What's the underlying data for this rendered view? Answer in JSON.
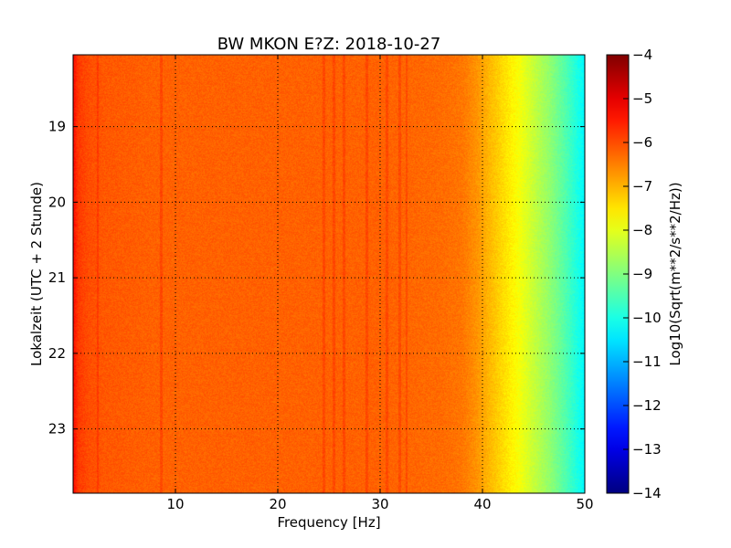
{
  "chart_data": {
    "type": "heatmap",
    "title": "BW MKON E?Z: 2018-10-27",
    "xlabel": "Frequency [Hz]",
    "ylabel": "Lokalzeit (UTC + 2 Stunde)",
    "xlim": [
      0,
      50
    ],
    "ylim": [
      23.85,
      18.05
    ],
    "x_ticks": [
      10,
      20,
      30,
      40,
      50
    ],
    "x_tick_labels": [
      "10",
      "20",
      "30",
      "40",
      "50"
    ],
    "y_ticks": [
      19,
      20,
      21,
      22,
      23
    ],
    "y_tick_labels": [
      "19",
      "20",
      "21",
      "22",
      "23"
    ],
    "grid": true,
    "colormap": "jet",
    "colorbar": {
      "label": "Log10(Sqrt(m**2/s**2/Hz))",
      "range": [
        -14,
        -4
      ],
      "ticks": [
        -4,
        -5,
        -6,
        -7,
        -8,
        -9,
        -10,
        -11,
        -12,
        -13,
        -14
      ],
      "tick_labels": [
        "−4",
        "−5",
        "−6",
        "−7",
        "−8",
        "−9",
        "−10",
        "−11",
        "−12",
        "−13",
        "−14"
      ]
    },
    "spectral_profile": {
      "frequency_hz": [
        0,
        0.5,
        1.5,
        3,
        8,
        20,
        30,
        36,
        38,
        39.5,
        40.5,
        42,
        43.5,
        45,
        46.5,
        48,
        49.3,
        50
      ],
      "value": [
        -5.3,
        -5.8,
        -6.0,
        -6.1,
        -6.2,
        -6.2,
        -6.2,
        -6.3,
        -6.4,
        -6.7,
        -7.0,
        -7.4,
        -7.8,
        -8.3,
        -8.8,
        -9.4,
        -10.0,
        -10.3
      ]
    },
    "spectral_lines_hz": [
      2.4,
      8.6,
      24.5,
      25.5,
      26.5,
      28.7,
      30.7,
      31.9,
      32.6
    ]
  }
}
